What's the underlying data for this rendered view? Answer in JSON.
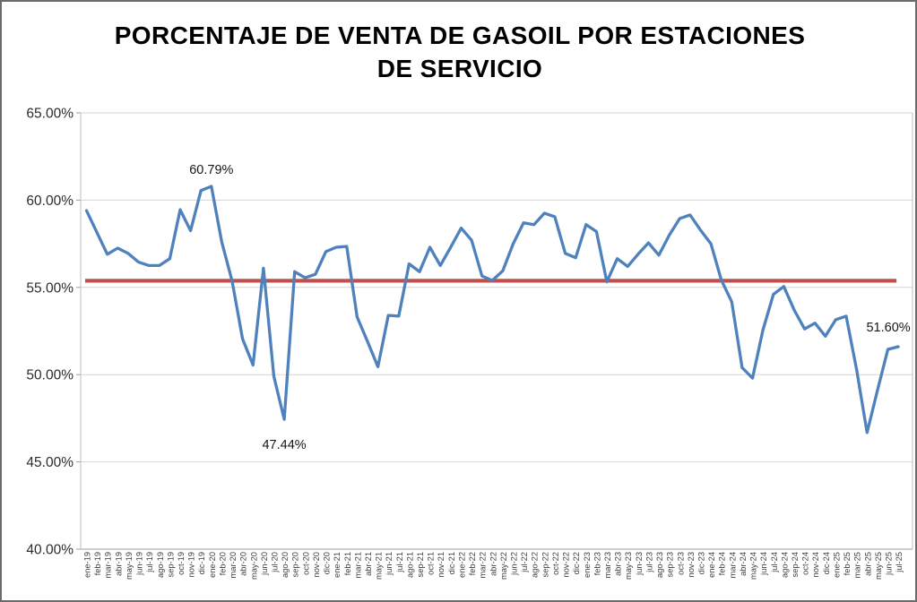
{
  "chart_data": {
    "type": "line",
    "title": "PORCENTAJE DE VENTA DE GASOIL POR ESTACIONES DE SERVICIO",
    "categories": [
      "ene-19",
      "feb-19",
      "mar-19",
      "abr-19",
      "may-19",
      "jun-19",
      "jul-19",
      "ago-19",
      "sep-19",
      "oct-19",
      "nov-19",
      "dic-19",
      "ene-20",
      "feb-20",
      "mar-20",
      "abr-20",
      "may-20",
      "jun-20",
      "jul-20",
      "ago-20",
      "sep-20",
      "oct-20",
      "nov-20",
      "dic-20",
      "ene-21",
      "feb-21",
      "mar-21",
      "abr-21",
      "may-21",
      "jun-21",
      "jul-21",
      "ago-21",
      "sep-21",
      "oct-21",
      "nov-21",
      "dic-21",
      "ene-22",
      "feb-22",
      "mar-22",
      "abr-22",
      "may-22",
      "jun-22",
      "jul-22",
      "ago-22",
      "sep-22",
      "oct-22",
      "nov-22",
      "dic-22",
      "ene-23",
      "feb-23",
      "mar-23",
      "abr-23",
      "may-23",
      "jun-23",
      "jul-23",
      "ago-23",
      "sep-23",
      "oct-23",
      "nov-23",
      "dic-23",
      "ene-24",
      "feb-24",
      "mar-24",
      "abr-24",
      "may-24",
      "jun-24",
      "jul-24",
      "ago-24",
      "sep-24",
      "oct-24",
      "nov-24",
      "dic-24",
      "ene-25",
      "feb-25",
      "mar-25",
      "abr-25",
      "may-25",
      "jun-25",
      "jul-25"
    ],
    "values": [
      59.4,
      58.15,
      56.9,
      57.25,
      56.95,
      56.45,
      56.25,
      56.25,
      56.65,
      59.45,
      58.25,
      60.55,
      60.79,
      57.6,
      55.35,
      52.05,
      50.55,
      56.1,
      49.9,
      47.44,
      55.9,
      55.55,
      55.75,
      57.05,
      57.3,
      57.35,
      53.3,
      51.9,
      50.45,
      53.4,
      53.35,
      56.35,
      55.9,
      57.3,
      56.25,
      57.3,
      58.4,
      57.7,
      55.65,
      55.4,
      55.95,
      57.5,
      58.7,
      58.6,
      59.25,
      59.05,
      56.95,
      56.7,
      58.6,
      58.2,
      55.32,
      56.65,
      56.2,
      56.9,
      57.55,
      56.85,
      58.0,
      58.95,
      59.15,
      58.28,
      57.5,
      55.42,
      54.18,
      50.4,
      49.8,
      52.55,
      54.6,
      55.05,
      53.7,
      52.62,
      52.95,
      52.2,
      53.15,
      53.35,
      50.3,
      46.68,
      49.1,
      51.45,
      51.6
    ],
    "series_color": "#4F81BD",
    "reference_line": {
      "value": 55.38,
      "color": "#C0504D"
    },
    "ylim": [
      40,
      65
    ],
    "yticks": [
      "65.00%",
      "60.00%",
      "55.00%",
      "50.00%",
      "45.00%",
      "40.00%"
    ],
    "ytick_values": [
      65,
      60,
      55,
      50,
      45,
      40
    ],
    "xlabel": "",
    "ylabel": "",
    "grid": true,
    "legend": "none",
    "annotations": [
      {
        "index": 12,
        "text": "60.79%",
        "placement": "above"
      },
      {
        "index": 19,
        "text": "47.44%",
        "placement": "below"
      },
      {
        "index": 78,
        "text": "51.60%",
        "placement": "above-left"
      }
    ]
  },
  "colors": {
    "gridline": "#d6d6d6",
    "plot_border": "#bdbdbd",
    "axis_line": "#9e9e9e"
  }
}
